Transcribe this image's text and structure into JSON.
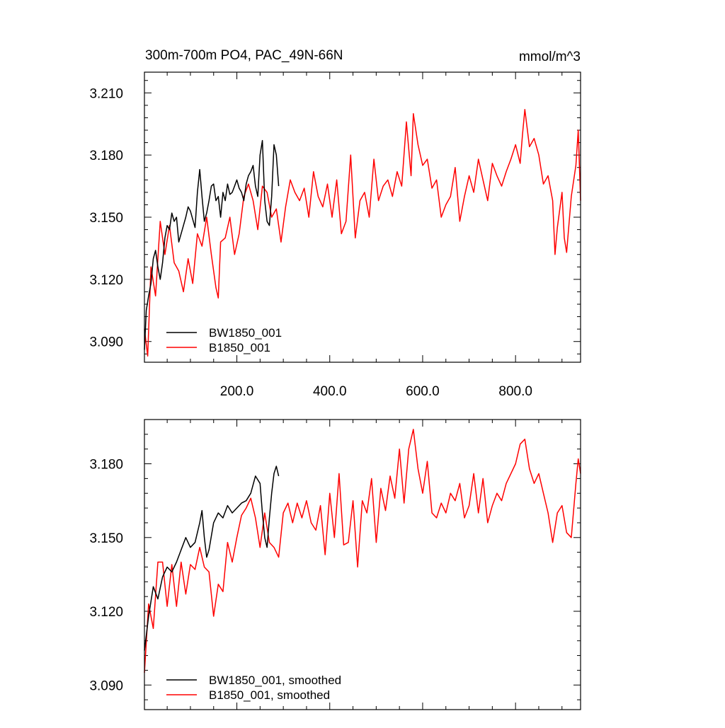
{
  "chart_data": [
    {
      "type": "line",
      "title": "300m-700m PO4, PAC_49N-66N",
      "units_label": "mmol/m^3",
      "xlabel": "",
      "ylabel": "",
      "xlim": [
        1,
        940
      ],
      "ylim": [
        3.08,
        3.22
      ],
      "xticks": [
        200,
        400,
        600,
        800
      ],
      "xtick_labels": [
        "200.0",
        "400.0",
        "600.0",
        "800.0"
      ],
      "yticks": [
        3.09,
        3.12,
        3.15,
        3.18,
        3.21
      ],
      "ytick_labels": [
        "3.090",
        "3.120",
        "3.150",
        "3.180",
        "3.210"
      ],
      "grid": false,
      "legend_position": "bottom-left",
      "series": [
        {
          "name": "BW1850_001",
          "color": "#000000",
          "x": [
            1,
            5,
            10,
            15,
            20,
            25,
            30,
            35,
            40,
            45,
            50,
            55,
            60,
            65,
            70,
            75,
            80,
            85,
            90,
            95,
            100,
            105,
            110,
            115,
            120,
            125,
            130,
            135,
            140,
            145,
            150,
            155,
            160,
            165,
            170,
            175,
            180,
            185,
            190,
            195,
            200,
            205,
            210,
            215,
            220,
            225,
            230,
            235,
            240,
            245,
            250,
            255,
            260,
            265,
            270,
            275,
            280,
            285,
            290
          ],
          "values": [
            3.086,
            3.105,
            3.112,
            3.118,
            3.13,
            3.134,
            3.126,
            3.12,
            3.128,
            3.14,
            3.146,
            3.144,
            3.152,
            3.148,
            3.15,
            3.138,
            3.142,
            3.146,
            3.15,
            3.155,
            3.153,
            3.149,
            3.145,
            3.162,
            3.173,
            3.16,
            3.148,
            3.152,
            3.158,
            3.165,
            3.166,
            3.158,
            3.16,
            3.15,
            3.162,
            3.158,
            3.166,
            3.161,
            3.162,
            3.165,
            3.168,
            3.164,
            3.162,
            3.158,
            3.166,
            3.17,
            3.172,
            3.175,
            3.165,
            3.16,
            3.18,
            3.187,
            3.158,
            3.148,
            3.146,
            3.16,
            3.185,
            3.18,
            3.165
          ]
        },
        {
          "name": "B1850_001",
          "color": "#ff0000",
          "x": [
            1,
            8,
            15,
            25,
            35,
            45,
            55,
            65,
            75,
            85,
            95,
            105,
            115,
            125,
            135,
            145,
            155,
            160,
            165,
            175,
            185,
            195,
            205,
            215,
            225,
            235,
            245,
            255,
            265,
            275,
            285,
            295,
            305,
            315,
            325,
            335,
            345,
            355,
            365,
            375,
            385,
            395,
            405,
            415,
            425,
            435,
            445,
            455,
            465,
            475,
            485,
            495,
            505,
            515,
            525,
            535,
            545,
            555,
            565,
            575,
            580,
            590,
            600,
            610,
            620,
            630,
            640,
            650,
            660,
            670,
            680,
            690,
            700,
            710,
            720,
            730,
            740,
            750,
            760,
            770,
            780,
            790,
            800,
            810,
            815,
            820,
            830,
            840,
            850,
            860,
            870,
            880,
            885,
            890,
            900,
            905,
            910,
            920,
            930,
            935,
            940
          ],
          "values": [
            3.096,
            3.083,
            3.126,
            3.112,
            3.148,
            3.132,
            3.146,
            3.128,
            3.124,
            3.114,
            3.13,
            3.118,
            3.142,
            3.136,
            3.15,
            3.132,
            3.116,
            3.111,
            3.138,
            3.14,
            3.15,
            3.132,
            3.142,
            3.16,
            3.166,
            3.158,
            3.144,
            3.165,
            3.162,
            3.15,
            3.154,
            3.138,
            3.155,
            3.168,
            3.162,
            3.158,
            3.164,
            3.15,
            3.172,
            3.16,
            3.155,
            3.166,
            3.15,
            3.168,
            3.142,
            3.148,
            3.18,
            3.14,
            3.158,
            3.162,
            3.15,
            3.178,
            3.158,
            3.165,
            3.168,
            3.16,
            3.172,
            3.165,
            3.196,
            3.17,
            3.2,
            3.185,
            3.175,
            3.178,
            3.164,
            3.168,
            3.15,
            3.156,
            3.16,
            3.174,
            3.148,
            3.16,
            3.17,
            3.162,
            3.178,
            3.168,
            3.158,
            3.176,
            3.17,
            3.165,
            3.172,
            3.178,
            3.185,
            3.176,
            3.19,
            3.202,
            3.184,
            3.188,
            3.18,
            3.166,
            3.17,
            3.158,
            3.132,
            3.145,
            3.162,
            3.14,
            3.133,
            3.16,
            3.175,
            3.192,
            3.158
          ]
        }
      ]
    },
    {
      "type": "line",
      "title": "",
      "xlabel": "",
      "ylabel": "",
      "xlim": [
        1,
        940
      ],
      "ylim": [
        3.08,
        3.198
      ],
      "xticks": [
        200,
        400,
        600,
        800
      ],
      "xtick_labels": [],
      "yticks": [
        3.09,
        3.12,
        3.15,
        3.18
      ],
      "ytick_labels": [
        "3.090",
        "3.120",
        "3.150",
        "3.180"
      ],
      "grid": false,
      "legend_position": "bottom-left",
      "series": [
        {
          "name": "BW1850_001, smoothed",
          "color": "#000000",
          "x": [
            1,
            10,
            20,
            30,
            40,
            50,
            60,
            70,
            80,
            90,
            100,
            110,
            120,
            125,
            130,
            135,
            140,
            150,
            160,
            170,
            180,
            190,
            200,
            210,
            220,
            230,
            240,
            250,
            255,
            260,
            265,
            270,
            275,
            280,
            285,
            290
          ],
          "values": [
            3.104,
            3.118,
            3.13,
            3.125,
            3.134,
            3.138,
            3.136,
            3.14,
            3.145,
            3.15,
            3.146,
            3.148,
            3.156,
            3.161,
            3.15,
            3.142,
            3.145,
            3.156,
            3.16,
            3.158,
            3.163,
            3.16,
            3.162,
            3.164,
            3.165,
            3.168,
            3.175,
            3.172,
            3.16,
            3.15,
            3.146,
            3.158,
            3.168,
            3.176,
            3.179,
            3.175
          ]
        },
        {
          "name": "B1850_001, smoothed",
          "color": "#ff0000",
          "x": [
            1,
            10,
            20,
            30,
            40,
            50,
            60,
            70,
            80,
            90,
            100,
            110,
            120,
            130,
            140,
            150,
            160,
            170,
            180,
            190,
            200,
            210,
            220,
            230,
            240,
            250,
            260,
            270,
            280,
            290,
            300,
            310,
            320,
            330,
            340,
            350,
            360,
            370,
            380,
            390,
            400,
            410,
            420,
            430,
            440,
            450,
            460,
            470,
            480,
            490,
            500,
            510,
            520,
            530,
            540,
            550,
            560,
            570,
            580,
            590,
            600,
            610,
            620,
            630,
            640,
            650,
            660,
            670,
            680,
            690,
            700,
            710,
            720,
            730,
            740,
            750,
            760,
            770,
            780,
            790,
            800,
            810,
            820,
            830,
            840,
            850,
            860,
            870,
            880,
            890,
            900,
            910,
            920,
            930,
            935,
            940
          ],
          "values": [
            3.095,
            3.123,
            3.113,
            3.14,
            3.14,
            3.122,
            3.139,
            3.122,
            3.14,
            3.127,
            3.139,
            3.137,
            3.146,
            3.138,
            3.136,
            3.118,
            3.131,
            3.128,
            3.148,
            3.14,
            3.15,
            3.159,
            3.162,
            3.166,
            3.158,
            3.146,
            3.16,
            3.148,
            3.146,
            3.142,
            3.16,
            3.164,
            3.156,
            3.164,
            3.158,
            3.165,
            3.156,
            3.153,
            3.163,
            3.143,
            3.168,
            3.15,
            3.176,
            3.147,
            3.148,
            3.165,
            3.138,
            3.165,
            3.16,
            3.174,
            3.148,
            3.17,
            3.161,
            3.175,
            3.166,
            3.186,
            3.164,
            3.186,
            3.194,
            3.178,
            3.168,
            3.181,
            3.16,
            3.158,
            3.164,
            3.16,
            3.168,
            3.165,
            3.172,
            3.158,
            3.163,
            3.176,
            3.16,
            3.174,
            3.156,
            3.163,
            3.168,
            3.165,
            3.172,
            3.176,
            3.18,
            3.188,
            3.19,
            3.178,
            3.172,
            3.176,
            3.168,
            3.16,
            3.148,
            3.16,
            3.163,
            3.152,
            3.15,
            3.172,
            3.182,
            3.176
          ]
        }
      ]
    }
  ]
}
